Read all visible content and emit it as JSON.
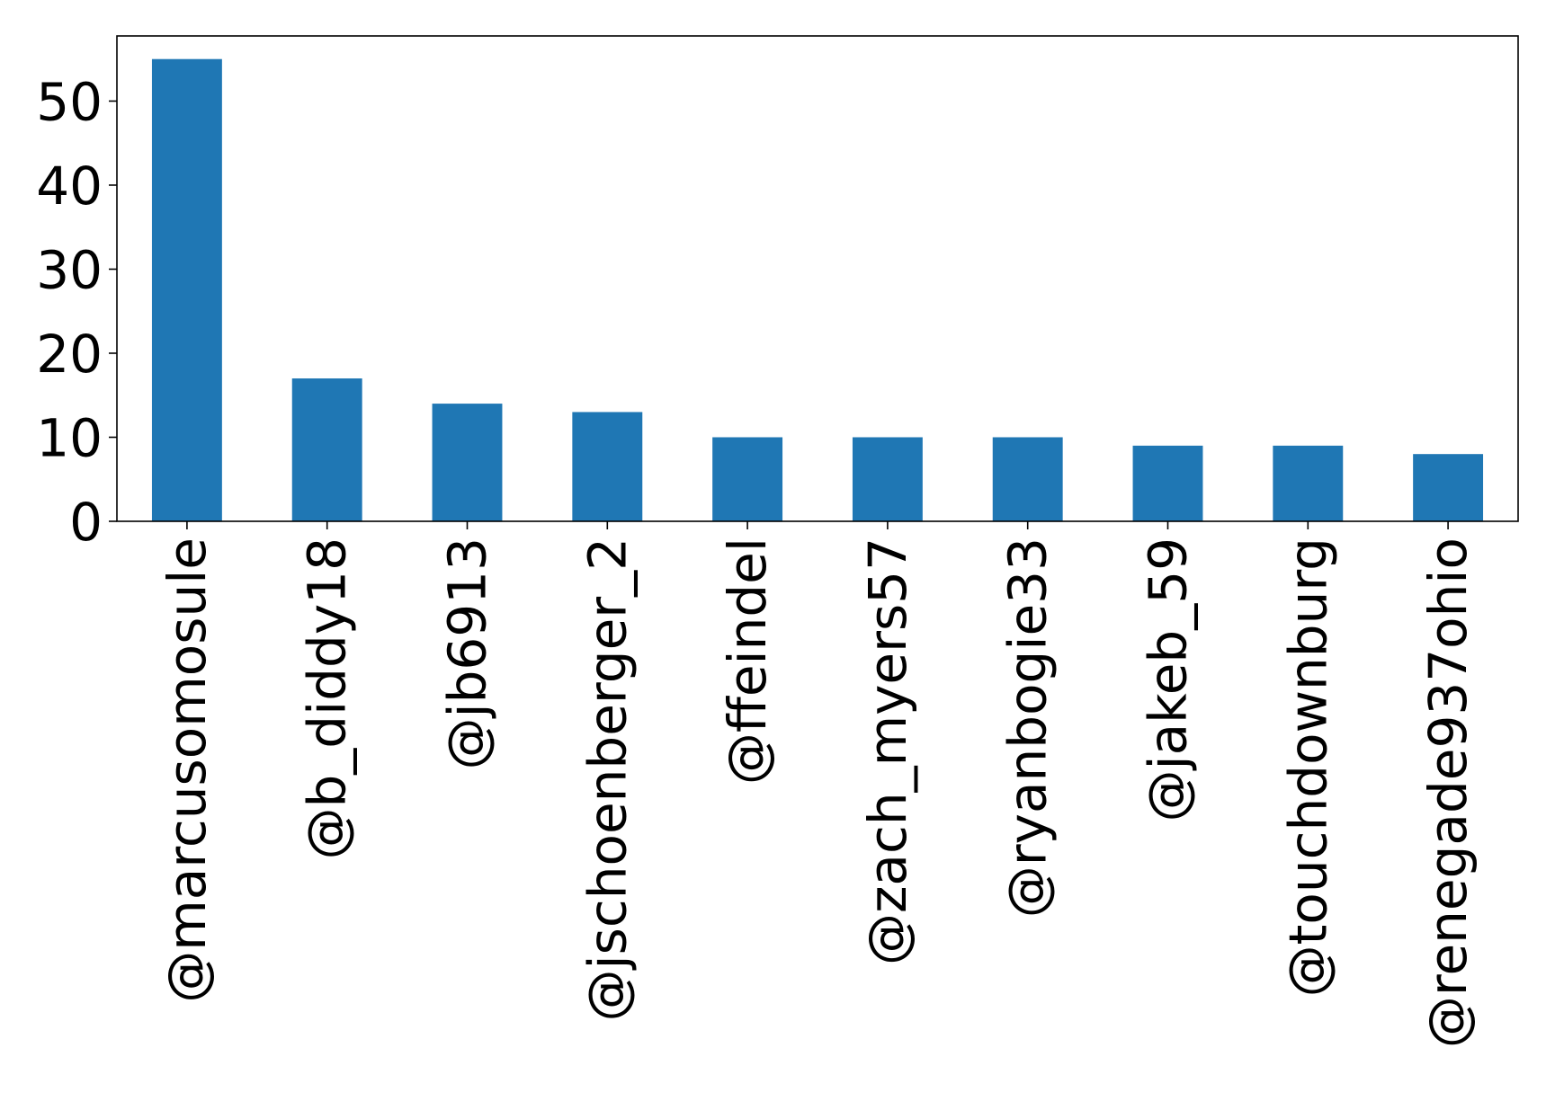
{
  "chart_data": {
    "type": "bar",
    "title": "",
    "xlabel": "",
    "ylabel": "",
    "categories": [
      "@marcusomosule",
      "@b_diddy18",
      "@jb6913",
      "@jschoenberger_2",
      "@ffeindel",
      "@zach_myers57",
      "@ryanbogie33",
      "@jakeb_59",
      "@touchdownburg",
      "@renegade937ohio"
    ],
    "values": [
      55,
      17,
      14,
      13,
      10,
      10,
      10,
      9,
      9,
      8
    ],
    "ylim": [
      0,
      57.75
    ],
    "yticks": [
      0,
      10,
      20,
      30,
      40,
      50
    ],
    "ytick_labels": [
      "0",
      "10",
      "20",
      "30",
      "40",
      "50"
    ],
    "grid": false,
    "legend": "none",
    "bar_color": "#1f77b4"
  }
}
